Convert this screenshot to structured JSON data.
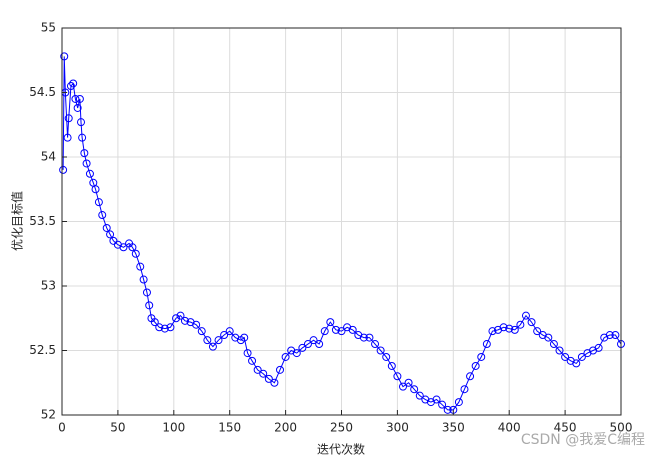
{
  "chart_data": {
    "type": "line",
    "xlabel": "迭代次数",
    "ylabel": "优化目标值",
    "watermark": "CSDN @我爱C编程",
    "x": [
      1,
      2,
      3,
      5,
      6,
      8,
      10,
      12,
      14,
      16,
      17,
      18,
      20,
      22,
      25,
      28,
      30,
      33,
      36,
      40,
      43,
      46,
      50,
      55,
      60,
      63,
      66,
      70,
      73,
      76,
      78,
      80,
      83,
      87,
      92,
      97,
      102,
      106,
      110,
      115,
      120,
      125,
      130,
      135,
      140,
      145,
      150,
      155,
      160,
      163,
      166,
      170,
      175,
      180,
      185,
      190,
      195,
      200,
      205,
      210,
      215,
      220,
      225,
      230,
      235,
      240,
      245,
      250,
      255,
      260,
      265,
      270,
      275,
      280,
      285,
      290,
      295,
      300,
      305,
      310,
      315,
      320,
      325,
      330,
      335,
      340,
      345,
      350,
      355,
      360,
      365,
      370,
      375,
      380,
      385,
      390,
      395,
      400,
      405,
      410,
      415,
      420,
      425,
      430,
      435,
      440,
      445,
      450,
      455,
      460,
      465,
      470,
      475,
      480,
      485,
      490,
      495,
      500
    ],
    "series": [
      {
        "name": "objective",
        "color": "#0000ff",
        "values": [
          53.9,
          54.78,
          54.5,
          54.15,
          54.3,
          54.55,
          54.57,
          54.45,
          54.38,
          54.45,
          54.27,
          54.15,
          54.03,
          53.95,
          53.87,
          53.8,
          53.75,
          53.65,
          53.55,
          53.45,
          53.4,
          53.35,
          53.32,
          53.3,
          53.33,
          53.3,
          53.25,
          53.15,
          53.05,
          52.95,
          52.85,
          52.75,
          52.72,
          52.68,
          52.67,
          52.68,
          52.75,
          52.77,
          52.73,
          52.72,
          52.7,
          52.65,
          52.58,
          52.53,
          52.58,
          52.62,
          52.65,
          52.6,
          52.58,
          52.6,
          52.48,
          52.42,
          52.35,
          52.32,
          52.28,
          52.25,
          52.35,
          52.45,
          52.5,
          52.48,
          52.52,
          52.55,
          52.58,
          52.55,
          52.65,
          52.72,
          52.66,
          52.65,
          52.68,
          52.66,
          52.62,
          52.6,
          52.6,
          52.55,
          52.5,
          52.45,
          52.38,
          52.3,
          52.22,
          52.25,
          52.2,
          52.15,
          52.12,
          52.1,
          52.12,
          52.08,
          52.04,
          52.04,
          52.1,
          52.2,
          52.3,
          52.38,
          52.45,
          52.55,
          52.65,
          52.66,
          52.68,
          52.67,
          52.66,
          52.7,
          52.77,
          52.72,
          52.65,
          52.62,
          52.6,
          52.55,
          52.5,
          52.45,
          52.42,
          52.4,
          52.45,
          52.48,
          52.5,
          52.52,
          52.6,
          52.62,
          52.62,
          52.55
        ]
      }
    ],
    "xlim": [
      0,
      500
    ],
    "xticks": [
      0,
      50,
      100,
      150,
      200,
      250,
      300,
      350,
      400,
      450,
      500
    ],
    "ylim": [
      52,
      55
    ],
    "yticks": [
      52,
      52.5,
      53,
      53.5,
      54,
      54.5,
      55
    ],
    "grid": true
  }
}
